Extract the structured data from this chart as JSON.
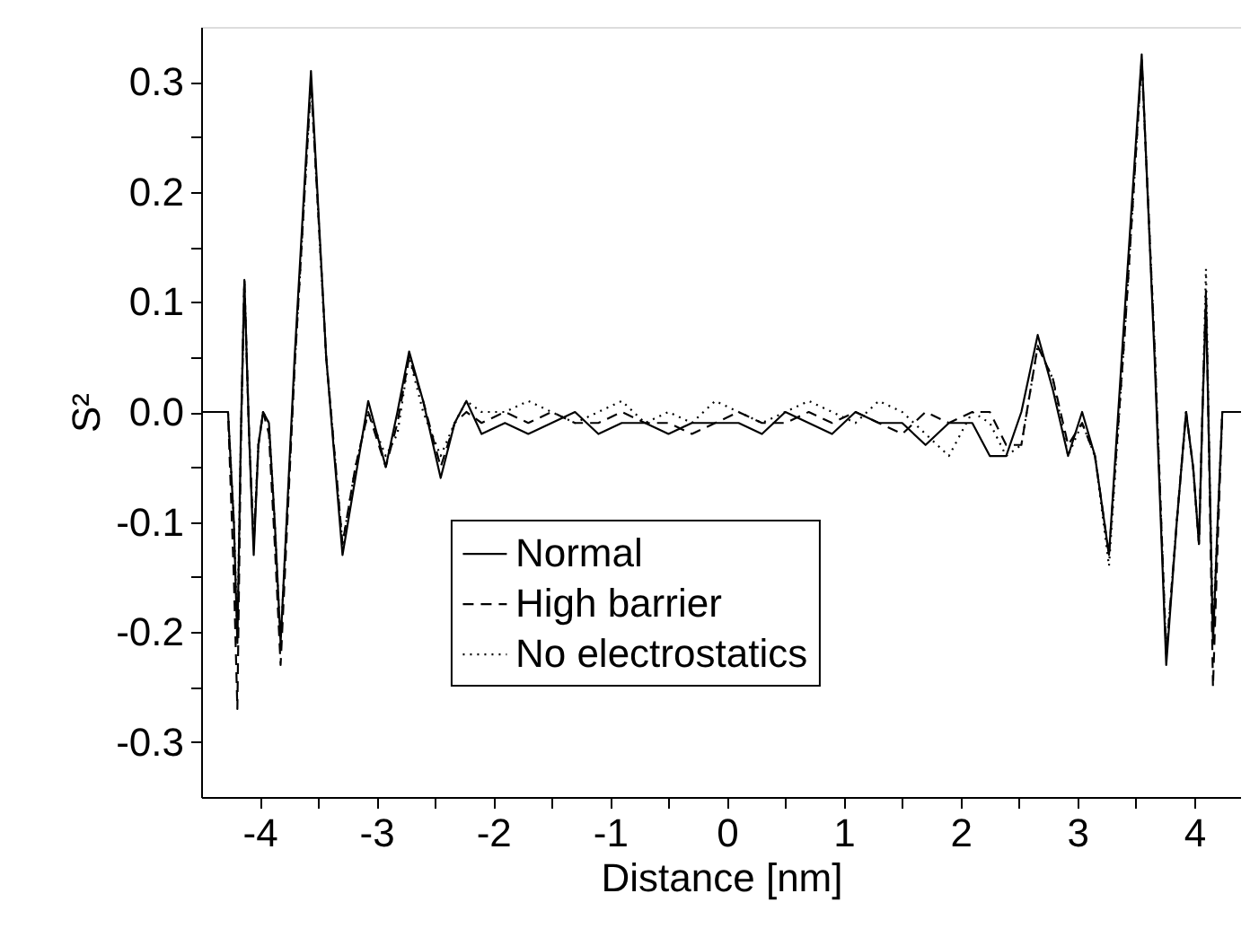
{
  "chart_data": {
    "type": "line",
    "xlabel": "Distance [nm]",
    "ylabel": "S²",
    "xlim": [
      -4.5,
      4.4
    ],
    "ylim": [
      -0.35,
      0.35
    ],
    "xticks": [
      -4,
      {
        "value": -3.5,
        "label": null
      },
      -3,
      {
        "value": -2.5,
        "label": null
      },
      -2,
      {
        "value": -1.5,
        "label": null
      },
      -1,
      {
        "value": -0.5,
        "label": null
      },
      0,
      {
        "value": 0.5,
        "label": null
      },
      1,
      {
        "value": 1.5,
        "label": null
      },
      2,
      {
        "value": 2.5,
        "label": null
      },
      3,
      {
        "value": 3.5,
        "label": null
      },
      4
    ],
    "yticks": [
      -0.3,
      {
        "value": -0.25,
        "label": null
      },
      -0.2,
      {
        "value": -0.15,
        "label": null
      },
      -0.1,
      {
        "value": -0.05,
        "label": null
      },
      {
        "value": 0,
        "label": "0.0"
      },
      {
        "value": 0.05,
        "label": null
      },
      0.1,
      {
        "value": 0.15,
        "label": null
      },
      0.2,
      {
        "value": 0.25,
        "label": null
      },
      0.3
    ],
    "grid": false,
    "legend": "bottom",
    "marker": "none",
    "x": [
      -4.5,
      -4.27,
      -4.22,
      -4.19,
      -4.16,
      -4.13,
      -4.09,
      -4.05,
      -4.01,
      -3.97,
      -3.92,
      -3.87,
      -3.82,
      -3.7,
      -3.56,
      -3.43,
      -3.29,
      -3.18,
      -3.07,
      -2.92,
      -2.82,
      -2.72,
      -2.6,
      -2.45,
      -2.33,
      -2.23,
      -2.1,
      -1.9,
      -1.7,
      -1.5,
      -1.3,
      -1.1,
      -0.9,
      -0.7,
      -0.5,
      -0.3,
      -0.1,
      0.1,
      0.3,
      0.5,
      0.7,
      0.9,
      1.1,
      1.3,
      1.5,
      1.7,
      1.9,
      2.1,
      2.25,
      2.39,
      2.52,
      2.66,
      2.79,
      2.92,
      3.04,
      3.15,
      3.27,
      3.41,
      3.55,
      3.66,
      3.76,
      3.85,
      3.93,
      3.99,
      4.04,
      4.07,
      4.1,
      4.13,
      4.16,
      4.2,
      4.24,
      4.4
    ],
    "series": [
      {
        "name": "Normal",
        "color": "#000000",
        "line_style": "solid",
        "values": [
          0,
          0,
          -0.1,
          -0.21,
          -0.02,
          0.12,
          -0.02,
          -0.13,
          -0.03,
          0,
          -0.01,
          -0.1,
          -0.21,
          0.05,
          0.31,
          0.05,
          -0.13,
          -0.06,
          0.01,
          -0.05,
          0.0,
          0.055,
          0.01,
          -0.06,
          -0.01,
          0.01,
          -0.02,
          -0.01,
          -0.02,
          -0.01,
          0,
          -0.02,
          -0.01,
          -0.01,
          -0.02,
          -0.01,
          -0.01,
          -0.01,
          -0.02,
          0.0,
          -0.01,
          -0.02,
          0.0,
          -0.01,
          -0.01,
          -0.03,
          -0.01,
          -0.01,
          -0.04,
          -0.04,
          0.0,
          0.07,
          0.02,
          -0.04,
          0.0,
          -0.04,
          -0.13,
          0.1,
          0.325,
          0.05,
          -0.23,
          -0.1,
          0.0,
          -0.05,
          -0.12,
          0.0,
          0.1,
          -0.05,
          -0.21,
          -0.1,
          0,
          0
        ]
      },
      {
        "name": "High barrier",
        "color": "#000000",
        "line_style": "dashed",
        "values": [
          0,
          0,
          -0.15,
          -0.27,
          -0.03,
          0.12,
          -0.02,
          -0.12,
          -0.03,
          0,
          -0.02,
          -0.12,
          -0.23,
          0.04,
          0.3,
          0.05,
          -0.12,
          -0.05,
          0.0,
          -0.05,
          -0.01,
          0.05,
          0.01,
          -0.05,
          -0.01,
          0.0,
          -0.01,
          0,
          -0.01,
          0,
          -0.01,
          -0.01,
          0,
          -0.01,
          -0.01,
          -0.02,
          -0.01,
          0,
          -0.01,
          -0.01,
          0,
          -0.01,
          0,
          -0.01,
          -0.02,
          0,
          -0.01,
          0,
          0.0,
          -0.03,
          -0.03,
          0.06,
          0.03,
          -0.03,
          -0.01,
          -0.04,
          -0.13,
          0.08,
          0.32,
          0.06,
          -0.22,
          -0.1,
          0.0,
          -0.05,
          -0.12,
          0.0,
          0.11,
          -0.06,
          -0.25,
          -0.12,
          0,
          0
        ]
      },
      {
        "name": "No electrostatics",
        "color": "#000000",
        "line_style": "dotted",
        "values": [
          0,
          0,
          -0.1,
          -0.2,
          -0.02,
          0.12,
          -0.02,
          -0.12,
          -0.03,
          0,
          -0.01,
          -0.1,
          -0.21,
          0.04,
          0.3,
          0.05,
          -0.12,
          -0.05,
          0.0,
          -0.04,
          -0.02,
          0.05,
          0.0,
          -0.04,
          -0.01,
          0.01,
          0,
          0,
          0.01,
          0,
          -0.01,
          0,
          0.01,
          -0.01,
          0,
          -0.01,
          0.01,
          0,
          -0.01,
          0,
          0.01,
          0,
          -0.01,
          0.01,
          0,
          -0.02,
          -0.04,
          0.0,
          -0.01,
          -0.04,
          -0.03,
          0.06,
          0.03,
          -0.04,
          -0.01,
          -0.04,
          -0.14,
          0.08,
          0.32,
          0.06,
          -0.22,
          -0.1,
          0.0,
          -0.05,
          -0.12,
          0.0,
          0.13,
          -0.05,
          -0.2,
          -0.1,
          0,
          0
        ]
      }
    ]
  }
}
